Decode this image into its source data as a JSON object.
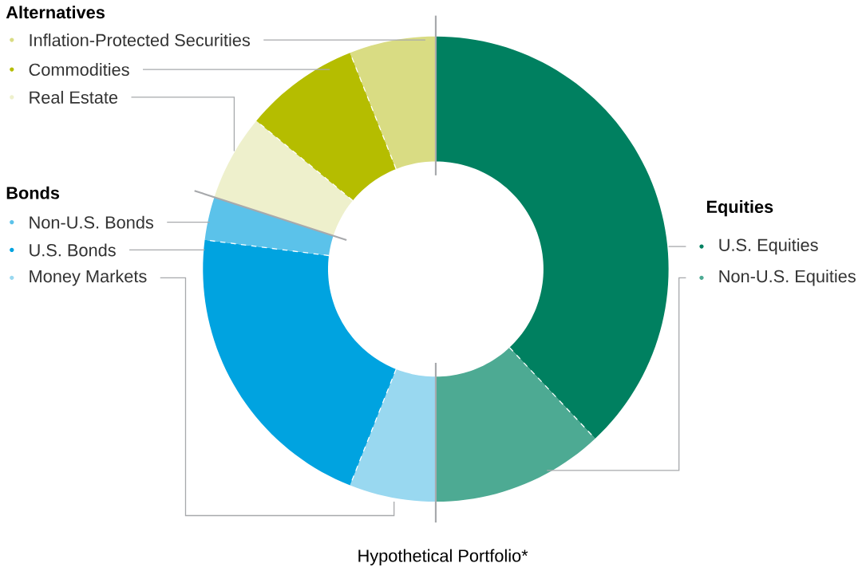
{
  "chart_data": {
    "type": "donut",
    "title": "Hypothetical Portfolio*",
    "categories": [
      "U.S. Equities",
      "Non-U.S. Equities",
      "Money Markets",
      "U.S. Bonds",
      "Non-U.S. Bonds",
      "Real Estate",
      "Commodities",
      "Inflation-Protected Securities"
    ],
    "values": [
      38,
      12,
      6,
      21,
      3,
      6,
      8,
      6
    ],
    "colors": [
      "#008060",
      "#4daa93",
      "#99d8f0",
      "#00a3e0",
      "#5bc2ea",
      "#eef0cc",
      "#b5bd00",
      "#d9dc83"
    ],
    "annotations": [
      "Equities",
      "Bonds",
      "Alternatives"
    ],
    "legend": "left"
  }
}
